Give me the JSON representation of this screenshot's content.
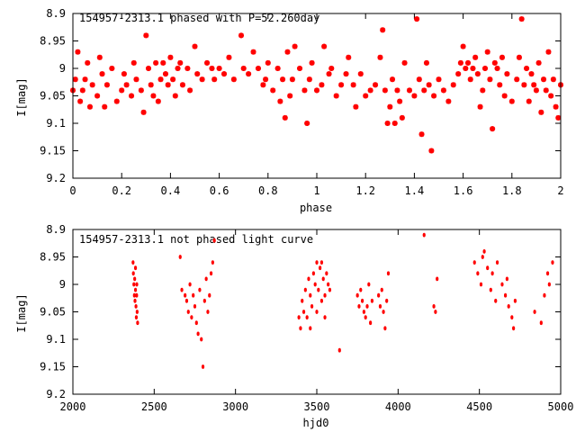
{
  "colors": {
    "points": "#ff0000",
    "frame": "#000000",
    "background": "#ffffff"
  },
  "chart_data": [
    {
      "type": "scatter",
      "title": "154957-2313.1 phased with P=52.260day",
      "xlabel": "phase",
      "ylabel": "I[mag]",
      "xlim": [
        0,
        2
      ],
      "ylim": [
        8.9,
        9.2
      ],
      "y_inverted": true,
      "grid": false,
      "xticks": [
        0,
        0.2,
        0.4,
        0.6,
        0.8,
        1,
        1.2,
        1.4,
        1.6,
        1.8,
        2
      ],
      "xtick_labels": [
        "0",
        "0.2",
        "0.4",
        "0.6",
        "0.8",
        "1",
        "1.2",
        "1.4",
        "1.6",
        "1.8",
        "2"
      ],
      "yticks": [
        8.9,
        8.95,
        9,
        9.05,
        9.1,
        9.15,
        9.2
      ],
      "ytick_labels": [
        "8.9",
        "8.95",
        "9",
        "9.05",
        "9.1",
        "9.15",
        "9.2"
      ],
      "series": [
        {
          "points": [
            [
              0.0,
              9.04
            ],
            [
              0.01,
              9.02
            ],
            [
              0.02,
              8.97
            ],
            [
              0.03,
              9.06
            ],
            [
              0.04,
              9.04
            ],
            [
              0.05,
              9.02
            ],
            [
              0.06,
              8.99
            ],
            [
              0.07,
              9.07
            ],
            [
              0.08,
              9.03
            ],
            [
              0.1,
              9.05
            ],
            [
              0.11,
              8.98
            ],
            [
              0.12,
              9.01
            ],
            [
              0.13,
              9.07
            ],
            [
              0.14,
              9.03
            ],
            [
              0.16,
              9.0
            ],
            [
              0.18,
              9.06
            ],
            [
              0.2,
              9.04
            ],
            [
              0.21,
              9.01
            ],
            [
              0.22,
              9.03
            ],
            [
              0.24,
              9.05
            ],
            [
              0.25,
              8.99
            ],
            [
              0.26,
              9.02
            ],
            [
              0.28,
              9.04
            ],
            [
              0.29,
              9.08
            ],
            [
              0.3,
              8.94
            ],
            [
              0.31,
              9.0
            ],
            [
              0.32,
              9.03
            ],
            [
              0.33,
              9.05
            ],
            [
              0.34,
              8.99
            ],
            [
              0.35,
              9.06
            ],
            [
              0.36,
              9.02
            ],
            [
              0.37,
              8.99
            ],
            [
              0.38,
              9.01
            ],
            [
              0.39,
              9.03
            ],
            [
              0.4,
              8.98
            ],
            [
              0.41,
              9.02
            ],
            [
              0.42,
              9.05
            ],
            [
              0.43,
              9.0
            ],
            [
              0.44,
              8.99
            ],
            [
              0.45,
              9.03
            ],
            [
              0.47,
              9.0
            ],
            [
              0.48,
              9.04
            ],
            [
              0.5,
              8.96
            ],
            [
              0.51,
              9.01
            ],
            [
              0.53,
              9.02
            ],
            [
              0.55,
              8.99
            ],
            [
              0.57,
              9.0
            ],
            [
              0.58,
              9.02
            ],
            [
              0.6,
              9.0
            ],
            [
              0.62,
              9.01
            ],
            [
              0.64,
              8.98
            ],
            [
              0.66,
              9.02
            ],
            [
              0.69,
              8.94
            ],
            [
              0.7,
              9.0
            ],
            [
              0.72,
              9.01
            ],
            [
              0.74,
              8.97
            ],
            [
              0.76,
              9.0
            ],
            [
              0.78,
              9.03
            ],
            [
              0.79,
              9.02
            ],
            [
              0.8,
              8.99
            ],
            [
              0.82,
              9.04
            ],
            [
              0.84,
              9.0
            ],
            [
              0.85,
              9.06
            ],
            [
              0.86,
              9.02
            ],
            [
              0.87,
              9.09
            ],
            [
              0.88,
              8.97
            ],
            [
              0.89,
              9.05
            ],
            [
              0.9,
              9.02
            ],
            [
              0.91,
              8.96
            ],
            [
              0.93,
              9.0
            ],
            [
              0.95,
              9.04
            ],
            [
              0.96,
              9.1
            ],
            [
              0.97,
              9.02
            ],
            [
              0.98,
              8.99
            ],
            [
              1.0,
              9.04
            ],
            [
              1.02,
              9.03
            ],
            [
              1.03,
              8.96
            ],
            [
              1.05,
              9.01
            ],
            [
              1.06,
              9.0
            ],
            [
              1.08,
              9.05
            ],
            [
              1.1,
              9.03
            ],
            [
              1.12,
              9.01
            ],
            [
              1.13,
              8.98
            ],
            [
              1.15,
              9.03
            ],
            [
              1.16,
              9.07
            ],
            [
              1.18,
              9.01
            ],
            [
              1.2,
              9.05
            ],
            [
              1.22,
              9.04
            ],
            [
              1.24,
              9.03
            ],
            [
              1.26,
              8.98
            ],
            [
              1.27,
              8.93
            ],
            [
              1.28,
              9.04
            ],
            [
              1.29,
              9.1
            ],
            [
              1.3,
              9.07
            ],
            [
              1.31,
              9.02
            ],
            [
              1.32,
              9.1
            ],
            [
              1.33,
              9.04
            ],
            [
              1.34,
              9.06
            ],
            [
              1.35,
              9.09
            ],
            [
              1.36,
              8.99
            ],
            [
              1.38,
              9.04
            ],
            [
              1.4,
              9.05
            ],
            [
              1.41,
              8.91
            ],
            [
              1.42,
              9.02
            ],
            [
              1.43,
              9.12
            ],
            [
              1.44,
              9.04
            ],
            [
              1.45,
              8.99
            ],
            [
              1.46,
              9.03
            ],
            [
              1.47,
              9.15
            ],
            [
              1.48,
              9.05
            ],
            [
              1.5,
              9.02
            ],
            [
              1.52,
              9.04
            ],
            [
              1.54,
              9.06
            ],
            [
              1.56,
              9.03
            ],
            [
              1.58,
              9.01
            ],
            [
              1.59,
              8.99
            ],
            [
              1.6,
              8.96
            ],
            [
              1.61,
              9.0
            ],
            [
              1.62,
              8.99
            ],
            [
              1.63,
              9.02
            ],
            [
              1.64,
              9.0
            ],
            [
              1.65,
              8.98
            ],
            [
              1.66,
              9.01
            ],
            [
              1.67,
              9.07
            ],
            [
              1.68,
              9.04
            ],
            [
              1.69,
              9.0
            ],
            [
              1.7,
              8.97
            ],
            [
              1.71,
              9.02
            ],
            [
              1.72,
              9.11
            ],
            [
              1.73,
              8.99
            ],
            [
              1.74,
              9.0
            ],
            [
              1.75,
              9.03
            ],
            [
              1.76,
              8.98
            ],
            [
              1.77,
              9.05
            ],
            [
              1.78,
              9.01
            ],
            [
              1.8,
              9.06
            ],
            [
              1.82,
              9.02
            ],
            [
              1.83,
              8.98
            ],
            [
              1.84,
              8.91
            ],
            [
              1.85,
              9.03
            ],
            [
              1.86,
              9.0
            ],
            [
              1.87,
              9.06
            ],
            [
              1.88,
              9.01
            ],
            [
              1.89,
              9.03
            ],
            [
              1.9,
              9.04
            ],
            [
              1.91,
              8.99
            ],
            [
              1.92,
              9.08
            ],
            [
              1.93,
              9.02
            ],
            [
              1.94,
              9.04
            ],
            [
              1.95,
              8.97
            ],
            [
              1.96,
              9.05
            ],
            [
              1.97,
              9.02
            ],
            [
              1.98,
              9.07
            ],
            [
              1.99,
              9.09
            ],
            [
              2.0,
              9.03
            ]
          ]
        }
      ]
    },
    {
      "type": "scatter",
      "title": "154957-2313.1 not phased light curve",
      "xlabel": "hjd0",
      "ylabel": "I[mag]",
      "xlim": [
        2000,
        5000
      ],
      "ylim": [
        8.9,
        9.2
      ],
      "y_inverted": true,
      "grid": false,
      "xticks": [
        2000,
        2500,
        3000,
        3500,
        4000,
        4500,
        5000
      ],
      "xtick_labels": [
        "2000",
        "2500",
        "3000",
        "3500",
        "4000",
        "4500",
        "5000"
      ],
      "yticks": [
        8.9,
        8.95,
        9,
        9.05,
        9.1,
        9.15,
        9.2
      ],
      "ytick_labels": [
        "8.9",
        "8.95",
        "9",
        "9.05",
        "9.1",
        "9.15",
        "9.2"
      ],
      "series": [
        {
          "points": [
            [
              2370,
              8.96
            ],
            [
              2372,
              8.98
            ],
            [
              2375,
              9.0
            ],
            [
              2378,
              9.02
            ],
            [
              2380,
              8.99
            ],
            [
              2382,
              9.03
            ],
            [
              2385,
              9.01
            ],
            [
              2388,
              9.04
            ],
            [
              2390,
              9.06
            ],
            [
              2392,
              9.02
            ],
            [
              2395,
              9.05
            ],
            [
              2398,
              9.07
            ],
            [
              2385,
              8.97
            ],
            [
              2393,
              9.0
            ],
            [
              2660,
              8.95
            ],
            [
              2670,
              9.01
            ],
            [
              2690,
              9.02
            ],
            [
              2700,
              9.03
            ],
            [
              2710,
              9.05
            ],
            [
              2720,
              9.0
            ],
            [
              2730,
              9.06
            ],
            [
              2740,
              9.02
            ],
            [
              2750,
              9.04
            ],
            [
              2760,
              9.07
            ],
            [
              2770,
              9.09
            ],
            [
              2780,
              9.01
            ],
            [
              2790,
              9.1
            ],
            [
              2800,
              9.15
            ],
            [
              2810,
              9.03
            ],
            [
              2820,
              8.99
            ],
            [
              2830,
              9.05
            ],
            [
              2840,
              9.02
            ],
            [
              2850,
              8.98
            ],
            [
              2860,
              8.96
            ],
            [
              2870,
              8.92
            ],
            [
              3390,
              9.06
            ],
            [
              3400,
              9.08
            ],
            [
              3410,
              9.03
            ],
            [
              3420,
              9.05
            ],
            [
              3430,
              9.01
            ],
            [
              3440,
              9.06
            ],
            [
              3450,
              8.99
            ],
            [
              3460,
              9.02
            ],
            [
              3470,
              9.04
            ],
            [
              3480,
              8.98
            ],
            [
              3490,
              9.0
            ],
            [
              3500,
              8.96
            ],
            [
              3510,
              9.01
            ],
            [
              3520,
              8.97
            ],
            [
              3530,
              9.03
            ],
            [
              3540,
              8.99
            ],
            [
              3550,
              9.02
            ],
            [
              3560,
              8.98
            ],
            [
              3570,
              9.0
            ],
            [
              3580,
              9.01
            ],
            [
              3460,
              9.08
            ],
            [
              3500,
              9.05
            ],
            [
              3530,
              8.96
            ],
            [
              3550,
              9.06
            ],
            [
              3640,
              9.12
            ],
            [
              3750,
              9.02
            ],
            [
              3760,
              9.04
            ],
            [
              3770,
              9.01
            ],
            [
              3780,
              9.03
            ],
            [
              3790,
              9.05
            ],
            [
              3800,
              9.06
            ],
            [
              3810,
              9.04
            ],
            [
              3820,
              9.0
            ],
            [
              3830,
              9.07
            ],
            [
              3840,
              9.03
            ],
            [
              3880,
              9.02
            ],
            [
              3890,
              9.04
            ],
            [
              3900,
              9.01
            ],
            [
              3910,
              9.05
            ],
            [
              3920,
              9.08
            ],
            [
              3930,
              9.03
            ],
            [
              3940,
              8.98
            ],
            [
              4160,
              8.91
            ],
            [
              4220,
              9.04
            ],
            [
              4240,
              8.99
            ],
            [
              4230,
              9.05
            ],
            [
              4470,
              8.96
            ],
            [
              4490,
              8.98
            ],
            [
              4510,
              9.0
            ],
            [
              4520,
              8.95
            ],
            [
              4530,
              8.94
            ],
            [
              4550,
              8.97
            ],
            [
              4570,
              9.01
            ],
            [
              4580,
              8.98
            ],
            [
              4600,
              9.03
            ],
            [
              4610,
              8.96
            ],
            [
              4640,
              9.0
            ],
            [
              4660,
              9.02
            ],
            [
              4680,
              9.04
            ],
            [
              4700,
              9.06
            ],
            [
              4710,
              9.08
            ],
            [
              4720,
              9.03
            ],
            [
              4670,
              8.99
            ],
            [
              4840,
              9.05
            ],
            [
              4880,
              9.07
            ],
            [
              4900,
              9.02
            ],
            [
              4920,
              8.98
            ],
            [
              4930,
              9.0
            ],
            [
              4950,
              8.96
            ]
          ]
        }
      ]
    }
  ]
}
